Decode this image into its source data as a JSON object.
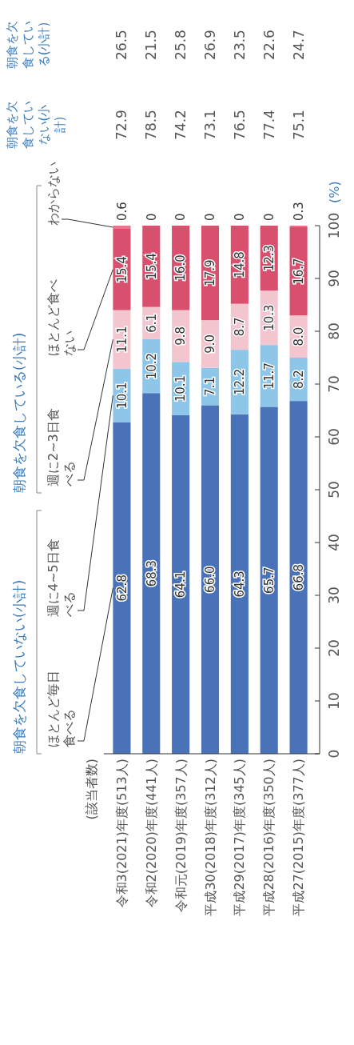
{
  "chart_data": {
    "type": "bar",
    "stacked": true,
    "categories": [
      "令和3(2021)年度(513人)",
      "令和2(2020)年度(441人)",
      "令和元(2019)年度(357人)",
      "平成30(2018)年度(312人)",
      "平成29(2017)年度(345人)",
      "平成28(2016)年度(350人)",
      "平成27(2015)年度(377人)"
    ],
    "ylabel": "(%)",
    "ylim": [
      0,
      100
    ],
    "yticks": [
      0,
      10,
      20,
      30,
      40,
      50,
      60,
      70,
      80,
      90,
      100
    ],
    "legend": "left",
    "grid": false,
    "series": [
      {
        "name": "ほとんど毎日食べる",
        "color": "#4a72b8",
        "values": [
          62.8,
          68.3,
          64.1,
          66.0,
          64.3,
          65.7,
          66.8
        ],
        "value_labels": [
          "62.8",
          "68.3",
          "64.1",
          "66.0",
          "64.3",
          "65.7",
          "66.8"
        ]
      },
      {
        "name": "週に4~5日食べる",
        "color": "#8ec6ea",
        "values": [
          10.1,
          10.2,
          10.1,
          7.1,
          12.2,
          11.7,
          8.2
        ],
        "value_labels": [
          "10.1",
          "10.2",
          "10.1",
          "7.1",
          "12.2",
          "11.7",
          "8.2"
        ]
      },
      {
        "name": "週に2~3日食べる",
        "color": "#f3c6cf",
        "values": [
          11.1,
          6.1,
          9.8,
          9.0,
          8.7,
          10.3,
          8.0
        ],
        "value_labels": [
          "11.1",
          "6.1",
          "9.8",
          "9.0",
          "8.7",
          "10.3",
          "8.0"
        ]
      },
      {
        "name": "ほとんど食べない",
        "color": "#d9506e",
        "values": [
          15.4,
          15.4,
          16.0,
          17.9,
          14.8,
          12.3,
          16.7
        ],
        "value_labels": [
          "15.4",
          "15.4",
          "16.0",
          "17.9",
          "14.8",
          "12.3",
          "16.7"
        ]
      },
      {
        "name": "わからない",
        "color": "#e0788e",
        "values": [
          0.6,
          0,
          0,
          0,
          0,
          0,
          0.3
        ],
        "value_labels": [
          "0.6",
          "0",
          "0",
          "0",
          "0",
          "0",
          "0.3"
        ]
      }
    ],
    "data_labels": true,
    "annotations": [
      "朝食を欠食していない(小計)",
      "朝食を欠食している(小計)",
      "朝食を欠食していない(小計)",
      "朝食を欠食している(小計)",
      "72.9",
      "78.5",
      "74.2",
      "73.1",
      "76.5",
      "77.4",
      "75.1",
      "26.5",
      "21.5",
      "25.8",
      "26.9",
      "23.5",
      "22.6",
      "24.7",
      "(該当者数)"
    ]
  }
}
